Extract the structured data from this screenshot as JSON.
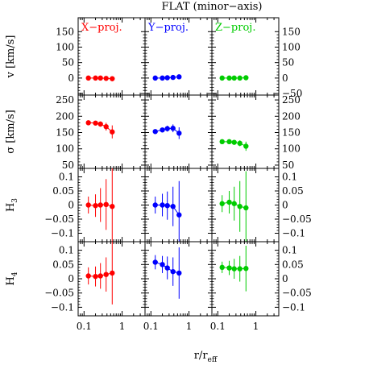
{
  "figure": {
    "title": "FLAT (minor−axis)",
    "xlabel": "r/r",
    "xlabel_sub": "eff"
  },
  "chart_data": {
    "type": "scatter",
    "title": "FLAT (minor−axis)",
    "x_scale": "log",
    "xlim": [
      0.07,
      4
    ],
    "x_ticks": [
      0.1,
      1
    ],
    "x_tick_labels": [
      "0.1",
      "1"
    ],
    "columns": [
      {
        "name": "X−proj.",
        "color": "#ff0000"
      },
      {
        "name": "Y−proj.",
        "color": "#0000ff"
      },
      {
        "name": "Z−proj.",
        "color": "#00cc00"
      }
    ],
    "rows": [
      {
        "ylabel": "v [km/s]",
        "ylim": [
          -55,
          195
        ],
        "ticks": [
          -50,
          0,
          50,
          100,
          150
        ],
        "left_tick_labels": [
          "",
          "0",
          "50",
          "100",
          "150"
        ],
        "right_tick_labels": [
          "−50",
          "0",
          "50",
          "100",
          "150"
        ]
      },
      {
        "ylabel": "σ [km/s]",
        "ylim": [
          40,
          265
        ],
        "ticks": [
          50,
          100,
          150,
          200,
          250
        ],
        "left_tick_labels": [
          "50",
          "100",
          "150",
          "200",
          "250"
        ],
        "right_tick_labels": [
          "50",
          "100",
          "150",
          "200",
          "250"
        ]
      },
      {
        "ylabel": "H",
        "ylabel_sub": "3",
        "ylim": [
          -0.13,
          0.13
        ],
        "ticks": [
          -0.1,
          -0.05,
          0,
          0.05,
          0.1
        ],
        "left_tick_labels": [
          "−0.1",
          "−0.05",
          "0",
          "0.05",
          "0.1"
        ],
        "right_tick_labels": [
          "−0.1",
          "−0.05",
          "0",
          "0.05",
          "0.1"
        ]
      },
      {
        "ylabel": "H",
        "ylabel_sub": "4",
        "ylim": [
          -0.13,
          0.13
        ],
        "ticks": [
          -0.1,
          -0.05,
          0,
          0.05,
          0.1
        ],
        "left_tick_labels": [
          "−0.1",
          "−0.05",
          "0",
          "0.05",
          "0.1"
        ],
        "right_tick_labels": [
          "−0.1",
          "−0.05",
          "0",
          "0.05",
          "0.1"
        ]
      }
    ],
    "panels": [
      [
        {
          "x": [
            0.13,
            0.2,
            0.27,
            0.38,
            0.55
          ],
          "y": [
            0,
            0,
            0,
            -1,
            -2
          ],
          "err": [
            4,
            4,
            4,
            5,
            8
          ]
        },
        {
          "x": [
            0.13,
            0.2,
            0.27,
            0.38,
            0.55
          ],
          "y": [
            0,
            0,
            1,
            2,
            4
          ],
          "err": [
            4,
            4,
            4,
            5,
            6
          ]
        },
        {
          "x": [
            0.13,
            0.2,
            0.27,
            0.38,
            0.55
          ],
          "y": [
            0,
            0,
            0,
            0,
            1
          ],
          "err": [
            3,
            3,
            3,
            4,
            5
          ]
        }
      ],
      [
        {
          "x": [
            0.13,
            0.2,
            0.27,
            0.38,
            0.55
          ],
          "y": [
            180,
            179,
            176,
            168,
            152
          ],
          "err": [
            6,
            6,
            8,
            12,
            20
          ]
        },
        {
          "x": [
            0.13,
            0.2,
            0.27,
            0.38,
            0.55
          ],
          "y": [
            153,
            158,
            162,
            163,
            148
          ],
          "err": [
            6,
            7,
            9,
            12,
            18
          ]
        },
        {
          "x": [
            0.13,
            0.2,
            0.27,
            0.38,
            0.55
          ],
          "y": [
            122,
            122,
            120,
            117,
            108
          ],
          "err": [
            5,
            6,
            7,
            9,
            14
          ]
        }
      ],
      [
        {
          "x": [
            0.13,
            0.2,
            0.27,
            0.38,
            0.55
          ],
          "y": [
            0,
            -0.002,
            0,
            0.002,
            -0.005
          ],
          "err": [
            0.03,
            0.04,
            0.06,
            0.09,
            0.14
          ]
        },
        {
          "x": [
            0.13,
            0.2,
            0.27,
            0.38,
            0.55
          ],
          "y": [
            0,
            0,
            -0.002,
            -0.005,
            -0.035
          ],
          "err": [
            0.03,
            0.04,
            0.05,
            0.07,
            0.12
          ]
        },
        {
          "x": [
            0.13,
            0.2,
            0.27,
            0.38,
            0.55
          ],
          "y": [
            0.005,
            0.01,
            0.005,
            -0.005,
            -0.01
          ],
          "err": [
            0.03,
            0.04,
            0.06,
            0.09,
            0.13
          ]
        }
      ],
      [
        {
          "x": [
            0.13,
            0.2,
            0.27,
            0.38,
            0.55
          ],
          "y": [
            0.01,
            0.008,
            0.01,
            0.015,
            0.02
          ],
          "err": [
            0.03,
            0.035,
            0.045,
            0.06,
            0.11
          ]
        },
        {
          "x": [
            0.13,
            0.2,
            0.27,
            0.38,
            0.55
          ],
          "y": [
            0.058,
            0.05,
            0.038,
            0.025,
            0.02
          ],
          "err": [
            0.025,
            0.03,
            0.04,
            0.05,
            0.09
          ]
        },
        {
          "x": [
            0.13,
            0.2,
            0.27,
            0.38,
            0.55
          ],
          "y": [
            0.04,
            0.038,
            0.035,
            0.035,
            0.036
          ],
          "err": [
            0.02,
            0.025,
            0.035,
            0.045,
            0.08
          ]
        }
      ]
    ]
  }
}
